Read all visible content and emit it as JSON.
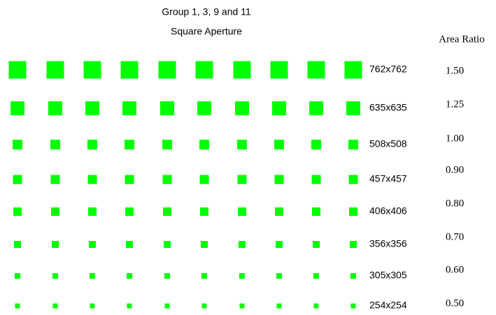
{
  "title": "Group 1, 3, 9 and 11",
  "subtitle": "Square Aperture",
  "column_header": "Area Ratio",
  "rows": [
    {
      "label": "762x762",
      "ratio": "1.50"
    },
    {
      "label": "635x635",
      "ratio": "1.25"
    },
    {
      "label": "508x508",
      "ratio": "1.00"
    },
    {
      "label": "457x457",
      "ratio": "0.90"
    },
    {
      "label": "406x406",
      "ratio": "0.80"
    },
    {
      "label": "356x356",
      "ratio": "0.70"
    },
    {
      "label": "305x305",
      "ratio": "0.60"
    },
    {
      "label": "254x254",
      "ratio": "0.50"
    }
  ]
}
